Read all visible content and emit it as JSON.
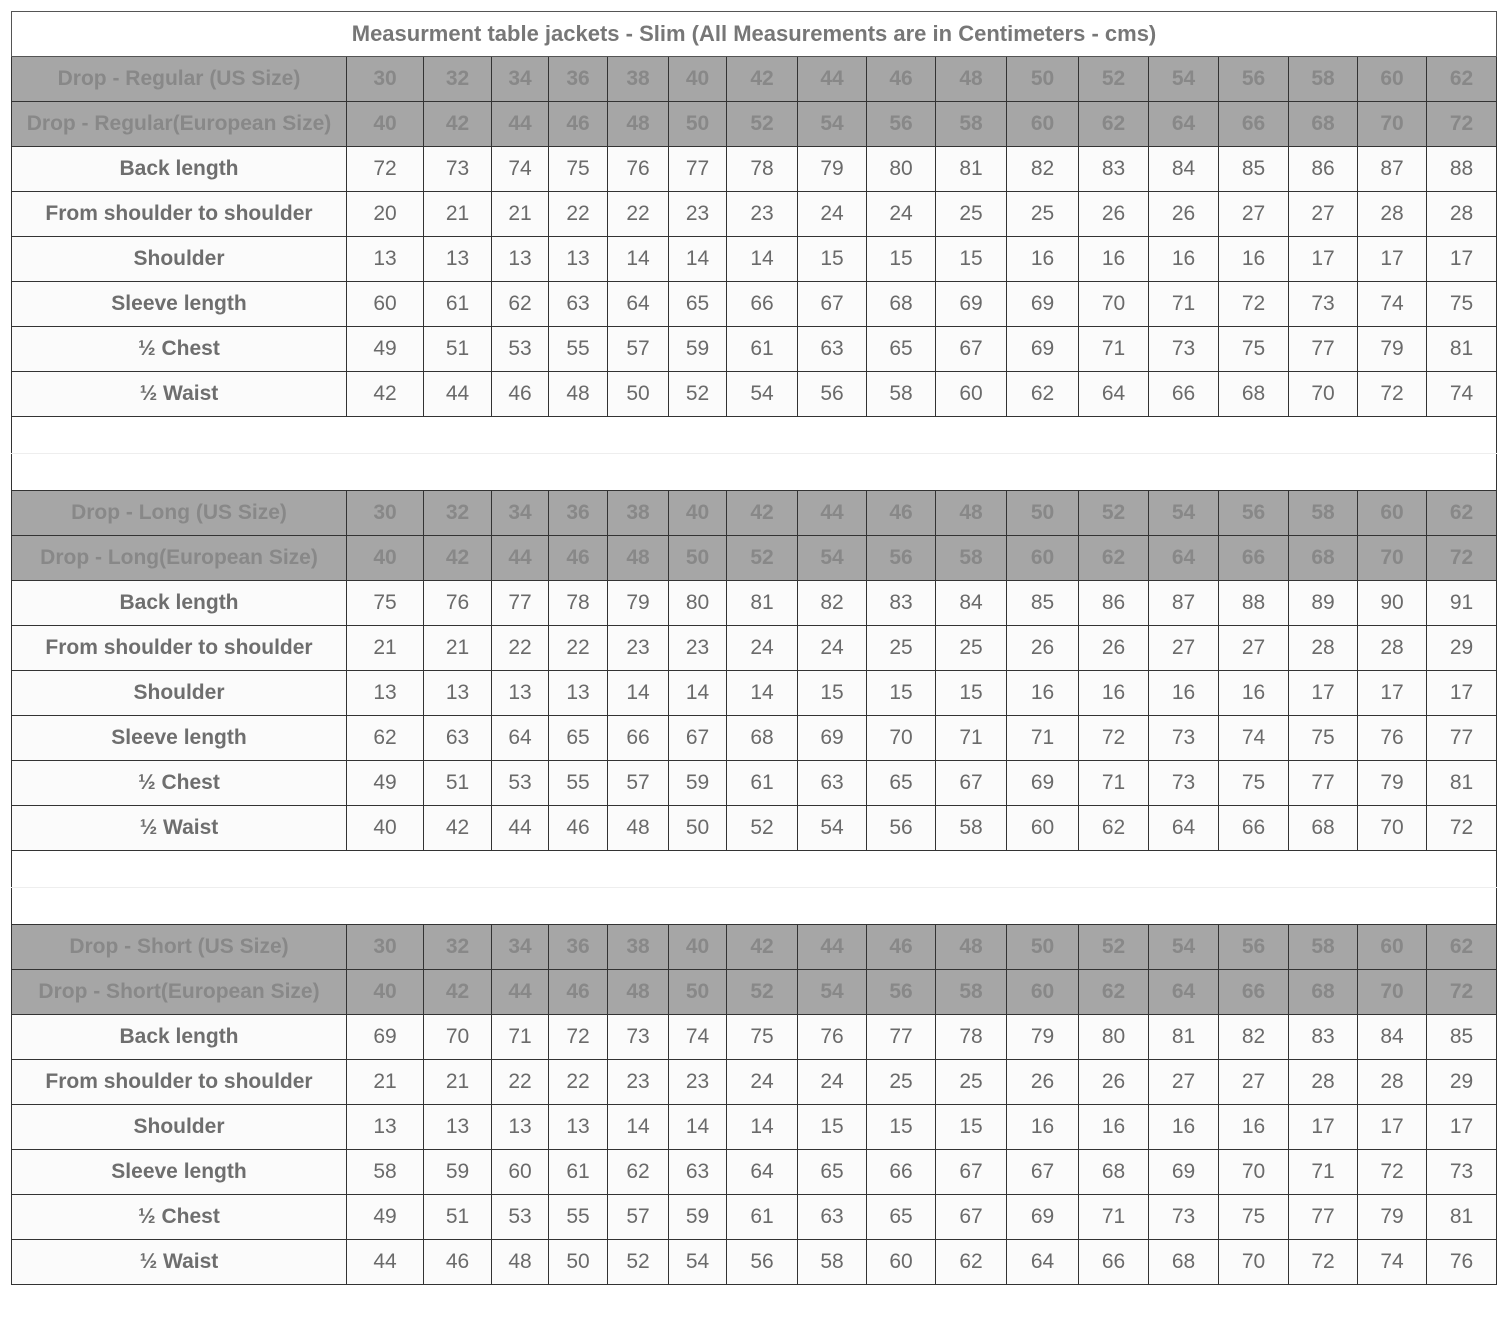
{
  "title": "Measurment table jackets - Slim (All Measurements are in Centimeters - cms)",
  "header_color": "#a6a6a6",
  "sections": [
    {
      "us_label": "Drop - Regular (US Size)",
      "eu_label": "Drop - Regular(European Size)",
      "us_sizes": [
        "30",
        "32",
        "34",
        "36",
        "38",
        "40",
        "42",
        "44",
        "46",
        "48",
        "50",
        "52",
        "54",
        "56",
        "58",
        "60",
        "62"
      ],
      "eu_sizes": [
        "40",
        "42",
        "44",
        "46",
        "48",
        "50",
        "52",
        "54",
        "56",
        "58",
        "60",
        "62",
        "64",
        "66",
        "68",
        "70",
        "72"
      ],
      "rows": [
        {
          "label": "Back length",
          "values": [
            "72",
            "73",
            "74",
            "75",
            "76",
            "77",
            "78",
            "79",
            "80",
            "81",
            "82",
            "83",
            "84",
            "85",
            "86",
            "87",
            "88"
          ]
        },
        {
          "label": "From shoulder to shoulder",
          "values": [
            "20",
            "21",
            "21",
            "22",
            "22",
            "23",
            "23",
            "24",
            "24",
            "25",
            "25",
            "26",
            "26",
            "27",
            "27",
            "28",
            "28"
          ]
        },
        {
          "label": "Shoulder",
          "values": [
            "13",
            "13",
            "13",
            "13",
            "14",
            "14",
            "14",
            "15",
            "15",
            "15",
            "16",
            "16",
            "16",
            "16",
            "17",
            "17",
            "17"
          ]
        },
        {
          "label": "Sleeve length",
          "values": [
            "60",
            "61",
            "62",
            "63",
            "64",
            "65",
            "66",
            "67",
            "68",
            "69",
            "69",
            "70",
            "71",
            "72",
            "73",
            "74",
            "75"
          ]
        },
        {
          "label": "½ Chest",
          "values": [
            "49",
            "51",
            "53",
            "55",
            "57",
            "59",
            "61",
            "63",
            "65",
            "67",
            "69",
            "71",
            "73",
            "75",
            "77",
            "79",
            "81"
          ]
        },
        {
          "label": "½ Waist",
          "values": [
            "42",
            "44",
            "46",
            "48",
            "50",
            "52",
            "54",
            "56",
            "58",
            "60",
            "62",
            "64",
            "66",
            "68",
            "70",
            "72",
            "74"
          ]
        }
      ]
    },
    {
      "us_label": "Drop - Long (US Size)",
      "eu_label": "Drop - Long(European Size)",
      "us_sizes": [
        "30",
        "32",
        "34",
        "36",
        "38",
        "40",
        "42",
        "44",
        "46",
        "48",
        "50",
        "52",
        "54",
        "56",
        "58",
        "60",
        "62"
      ],
      "eu_sizes": [
        "40",
        "42",
        "44",
        "46",
        "48",
        "50",
        "52",
        "54",
        "56",
        "58",
        "60",
        "62",
        "64",
        "66",
        "68",
        "70",
        "72"
      ],
      "rows": [
        {
          "label": "Back length",
          "values": [
            "75",
            "76",
            "77",
            "78",
            "79",
            "80",
            "81",
            "82",
            "83",
            "84",
            "85",
            "86",
            "87",
            "88",
            "89",
            "90",
            "91"
          ]
        },
        {
          "label": "From shoulder to shoulder",
          "values": [
            "21",
            "21",
            "22",
            "22",
            "23",
            "23",
            "24",
            "24",
            "25",
            "25",
            "26",
            "26",
            "27",
            "27",
            "28",
            "28",
            "29"
          ]
        },
        {
          "label": "Shoulder",
          "values": [
            "13",
            "13",
            "13",
            "13",
            "14",
            "14",
            "14",
            "15",
            "15",
            "15",
            "16",
            "16",
            "16",
            "16",
            "17",
            "17",
            "17"
          ]
        },
        {
          "label": "Sleeve length",
          "values": [
            "62",
            "63",
            "64",
            "65",
            "66",
            "67",
            "68",
            "69",
            "70",
            "71",
            "71",
            "72",
            "73",
            "74",
            "75",
            "76",
            "77"
          ]
        },
        {
          "label": "½ Chest",
          "values": [
            "49",
            "51",
            "53",
            "55",
            "57",
            "59",
            "61",
            "63",
            "65",
            "67",
            "69",
            "71",
            "73",
            "75",
            "77",
            "79",
            "81"
          ]
        },
        {
          "label": "½ Waist",
          "values": [
            "40",
            "42",
            "44",
            "46",
            "48",
            "50",
            "52",
            "54",
            "56",
            "58",
            "60",
            "62",
            "64",
            "66",
            "68",
            "70",
            "72"
          ]
        }
      ]
    },
    {
      "us_label": "Drop - Short (US Size)",
      "eu_label": "Drop - Short(European Size)",
      "us_sizes": [
        "30",
        "32",
        "34",
        "36",
        "38",
        "40",
        "42",
        "44",
        "46",
        "48",
        "50",
        "52",
        "54",
        "56",
        "58",
        "60",
        "62"
      ],
      "eu_sizes": [
        "40",
        "42",
        "44",
        "46",
        "48",
        "50",
        "52",
        "54",
        "56",
        "58",
        "60",
        "62",
        "64",
        "66",
        "68",
        "70",
        "72"
      ],
      "rows": [
        {
          "label": "Back length",
          "values": [
            "69",
            "70",
            "71",
            "72",
            "73",
            "74",
            "75",
            "76",
            "77",
            "78",
            "79",
            "80",
            "81",
            "82",
            "83",
            "84",
            "85"
          ]
        },
        {
          "label": "From shoulder to shoulder",
          "values": [
            "21",
            "21",
            "22",
            "22",
            "23",
            "23",
            "24",
            "24",
            "25",
            "25",
            "26",
            "26",
            "27",
            "27",
            "28",
            "28",
            "29"
          ]
        },
        {
          "label": "Shoulder",
          "values": [
            "13",
            "13",
            "13",
            "13",
            "14",
            "14",
            "14",
            "15",
            "15",
            "15",
            "16",
            "16",
            "16",
            "16",
            "17",
            "17",
            "17"
          ]
        },
        {
          "label": "Sleeve length",
          "values": [
            "58",
            "59",
            "60",
            "61",
            "62",
            "63",
            "64",
            "65",
            "66",
            "67",
            "67",
            "68",
            "69",
            "70",
            "71",
            "72",
            "73"
          ]
        },
        {
          "label": "½ Chest",
          "values": [
            "49",
            "51",
            "53",
            "55",
            "57",
            "59",
            "61",
            "63",
            "65",
            "67",
            "69",
            "71",
            "73",
            "75",
            "77",
            "79",
            "81"
          ]
        },
        {
          "label": "½ Waist",
          "values": [
            "44",
            "46",
            "48",
            "50",
            "52",
            "54",
            "56",
            "58",
            "60",
            "62",
            "64",
            "66",
            "68",
            "70",
            "72",
            "74",
            "76"
          ]
        }
      ]
    }
  ]
}
